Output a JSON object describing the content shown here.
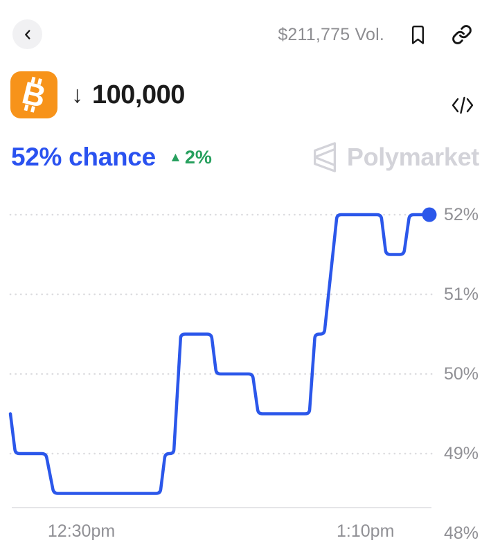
{
  "header": {
    "volume": "$211,775 Vol."
  },
  "market": {
    "symbol_glyph": "B",
    "symbol_name": "bitcoin",
    "direction_arrow": "↓",
    "title": "100,000"
  },
  "summary": {
    "chance": "52% chance",
    "change_arrow": "▲",
    "change": "2%"
  },
  "watermark": {
    "brand": "Polymarket"
  },
  "icons": {
    "back": "chevron-left-icon",
    "bookmark": "bookmark-icon",
    "share": "link-icon",
    "embed": "code-icon",
    "market": "bitcoin-icon",
    "brand_mark": "polymarket-logo-icon"
  },
  "colors": {
    "accent_blue": "#2a52f0",
    "line_blue": "#2b57ea",
    "positive_green": "#27a05e",
    "bitcoin_orange": "#f7931a",
    "watermark_gray": "#d3d3d9"
  },
  "chart_data": {
    "type": "line",
    "title": "Probability of Bitcoin below 100,000",
    "series": [
      {
        "name": "chance",
        "points": [
          [
            0,
            49.5
          ],
          [
            0.7,
            49.0
          ],
          [
            5.0,
            49.0
          ],
          [
            6.1,
            48.5
          ],
          [
            21.1,
            48.5
          ],
          [
            21.8,
            49.0
          ],
          [
            23.0,
            49.0
          ],
          [
            24.0,
            50.5
          ],
          [
            28.3,
            50.5
          ],
          [
            29.0,
            50.0
          ],
          [
            34.1,
            50.0
          ],
          [
            34.9,
            49.5
          ],
          [
            42.1,
            49.5
          ],
          [
            42.9,
            50.5
          ],
          [
            44.2,
            50.5
          ],
          [
            46.0,
            52.0
          ],
          [
            52.2,
            52.0
          ],
          [
            52.9,
            51.5
          ],
          [
            55.4,
            51.5
          ],
          [
            56.2,
            52.0
          ],
          [
            59.0,
            52.0
          ]
        ]
      }
    ],
    "x_unit": "minutes",
    "x_domain": [
      0,
      59
    ],
    "x_ticks": [
      {
        "label": "12:30pm",
        "t": 10
      },
      {
        "label": "1:10pm",
        "t": 50
      }
    ],
    "y_ticks": [
      {
        "label": "52%",
        "value": 52,
        "gridline": true
      },
      {
        "label": "51%",
        "value": 51,
        "gridline": true
      },
      {
        "label": "50%",
        "value": 50,
        "gridline": true
      },
      {
        "label": "49%",
        "value": 49,
        "gridline": true
      },
      {
        "label": "48%",
        "value": 48,
        "gridline": false
      }
    ],
    "y_axis_side": "right",
    "grid": "dotted",
    "current_value": "52%",
    "end_dot": true,
    "line_color": "#2b57ea",
    "grid_color": "#dcdcdf",
    "axis_line_color": "#e5e5e8",
    "axis_label_color": "#909095"
  }
}
